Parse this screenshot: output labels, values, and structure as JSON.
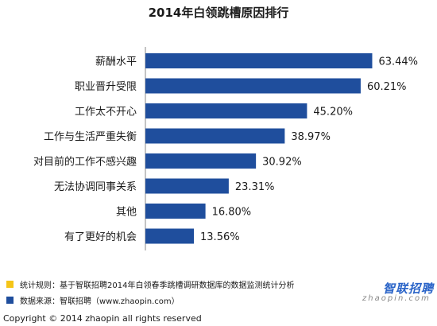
{
  "chart_data": {
    "type": "bar",
    "orientation": "horizontal",
    "title": "2014年白领跳槽原因排行",
    "categories": [
      "薪酬水平",
      "职业晋升受限",
      "工作太不开心",
      "工作与生活严重失衡",
      "对目前的工作不感兴趣",
      "无法协调同事关系",
      "其他",
      "有了更好的机会"
    ],
    "values": [
      63.44,
      60.21,
      45.2,
      38.97,
      30.92,
      23.31,
      16.8,
      13.56
    ],
    "value_labels": [
      "63.44%",
      "60.21%",
      "45.20%",
      "38.97%",
      "30.92%",
      "23.31%",
      "16.80%",
      "13.56%"
    ],
    "xlim": [
      0,
      100
    ],
    "grid": false,
    "bar_color": "#1f4e9d"
  },
  "notes": [
    {
      "text": "统计规则：基于智联招聘2014年白领春季跳槽调研数据库的数据监测统计分析",
      "color": "#f5c518"
    },
    {
      "text": "数据来源：智联招聘（www.zhaopin.com）",
      "color": "#1f4e9d"
    }
  ],
  "logo": {
    "main": "智联招聘",
    "sub": "zhaopin.com"
  },
  "footer": "Copyright  ©  2014 zhaopin all rights reserved"
}
